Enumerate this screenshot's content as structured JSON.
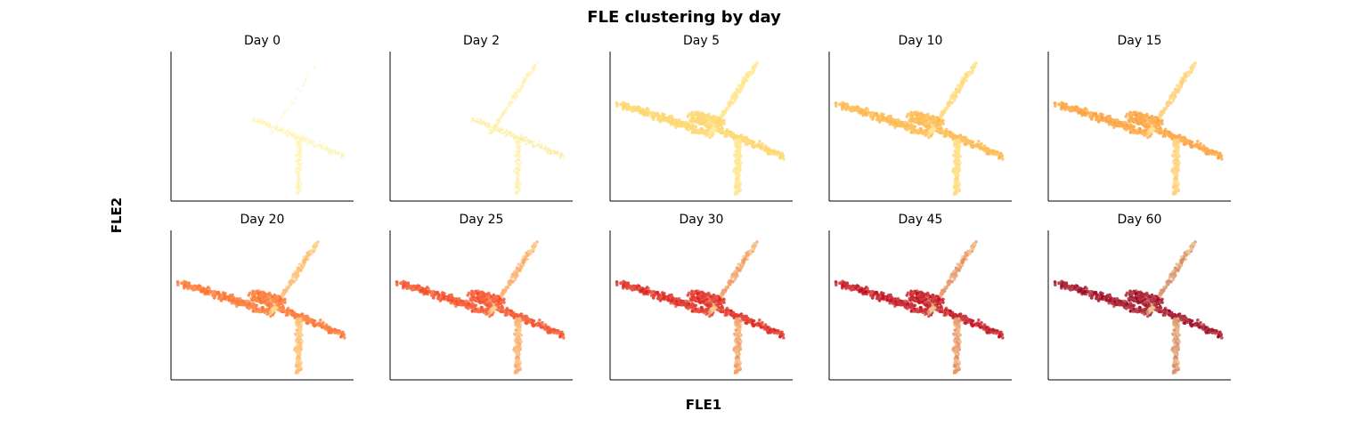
{
  "figure": {
    "title": "FLE clustering by day",
    "xlabel": "FLE1",
    "ylabel": "FLE2"
  },
  "colors": {
    "palette": "YlOrRd",
    "day_colors": {
      "0": "#fff3b0",
      "2": "#fee99a",
      "5": "#fed46f",
      "10": "#feb54d",
      "15": "#fd9d3f",
      "20": "#fc6d31",
      "25": "#f44528",
      "30": "#dc1d1f",
      "45": "#c0061f",
      "60": "#9b0026"
    }
  },
  "chart_data": {
    "type": "scatter",
    "layout": "small-multiples 2x5",
    "shared_axes": true,
    "ticks": "none",
    "grid": false,
    "legend": "none",
    "panels": [
      {
        "title": "Day 0",
        "day": 0
      },
      {
        "title": "Day 2",
        "day": 2
      },
      {
        "title": "Day 5",
        "day": 5
      },
      {
        "title": "Day 10",
        "day": 10
      },
      {
        "title": "Day 15",
        "day": 15
      },
      {
        "title": "Day 20",
        "day": 20
      },
      {
        "title": "Day 25",
        "day": 25
      },
      {
        "title": "Day 30",
        "day": 30
      },
      {
        "title": "Day 45",
        "day": 45
      },
      {
        "title": "Day 60",
        "day": 60
      }
    ]
  }
}
